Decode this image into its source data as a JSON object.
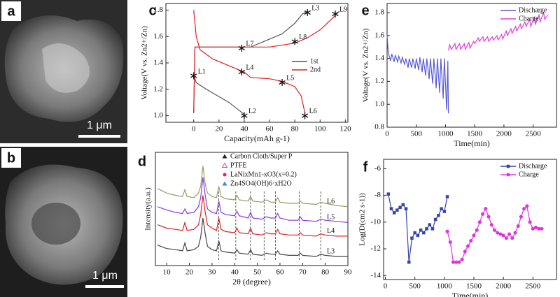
{
  "images": [
    {
      "label": "a",
      "scale_bar": "1 μm"
    },
    {
      "label": "b",
      "scale_bar": "1 μm"
    }
  ],
  "chart_data": [
    {
      "type": "line",
      "panel_label": "c",
      "x_label": "Capacity(mAh g-1)",
      "y_label": "Voltage(V vs. Zn2+/Zn)",
      "xlim": [
        -22,
        122
      ],
      "xticks": [
        0,
        20,
        40,
        60,
        80,
        100,
        120
      ],
      "ylim": [
        0.95,
        1.85
      ],
      "yticks": [
        {
          "value": 1,
          "label": "1.0"
        },
        1.2,
        1.4,
        1.6,
        1.8
      ],
      "legend_position": "center right",
      "series": [
        {
          "name": "1st",
          "color": "#555555",
          "x": [
            0,
            2,
            10,
            28,
            40,
            40,
            0,
            1,
            20,
            45,
            55,
            70,
            80,
            86,
            90
          ],
          "values": [
            1.31,
            1.25,
            1.2,
            1.1,
            1.01,
            null,
            1.02,
            1.52,
            1.52,
            1.52,
            1.56,
            1.62,
            1.7,
            1.77,
            1.79
          ]
        },
        {
          "name": "2nd",
          "color": "#e02020",
          "x": [
            0,
            2,
            5,
            15,
            30,
            40,
            45,
            60,
            70,
            80,
            85,
            88,
            88,
            0,
            1,
            40,
            60,
            80,
            90,
            100,
            110,
            115
          ],
          "values": [
            1.8,
            1.6,
            1.5,
            1.43,
            1.37,
            1.33,
            1.29,
            1.28,
            1.26,
            1.22,
            1.15,
            1.02,
            null,
            1.02,
            1.52,
            1.52,
            1.52,
            1.55,
            1.59,
            1.65,
            1.74,
            1.79
          ]
        }
      ],
      "annotations": [
        {
          "text": "L1",
          "x": 0,
          "y": 1.31
        },
        {
          "text": "L2",
          "x": 40,
          "y": 1.01
        },
        {
          "text": "L3",
          "x": 90,
          "y": 1.79
        },
        {
          "text": "L4",
          "x": 38,
          "y": 1.34
        },
        {
          "text": "L5",
          "x": 70,
          "y": 1.26
        },
        {
          "text": "L6",
          "x": 88,
          "y": 1.01
        },
        {
          "text": "L7",
          "x": 38,
          "y": 1.52
        },
        {
          "text": "L8",
          "x": 80,
          "y": 1.57
        },
        {
          "text": "L9",
          "x": 112,
          "y": 1.78
        }
      ]
    },
    {
      "type": "line",
      "panel_label": "d",
      "x_label": "2θ (degree)",
      "y_label": "Intensity(a.u.)",
      "xlim": [
        5,
        90
      ],
      "xticks": [
        10,
        20,
        30,
        40,
        50,
        60,
        70,
        80,
        90
      ],
      "ylim": [
        0,
        100
      ],
      "end_labels": true,
      "reference_x": [
        33,
        40.5,
        47,
        53,
        58,
        68.5,
        78
      ],
      "legend_entries": [
        {
          "label": "Carbon Cloth/Super P",
          "marker": "triangle",
          "color": "#222222"
        },
        {
          "label": "PTFE",
          "marker": "triangle-open",
          "color": "#e040c0"
        },
        {
          "label": "LaNixMn1-xO3(x=0.2)",
          "marker": "circle",
          "color": "#e0207a"
        },
        {
          "label": "Zn4SO4(OH)6·xH2O",
          "marker": "triangle",
          "color": "#3a8fc0"
        }
      ],
      "x": [
        6,
        10,
        14,
        17,
        18,
        19,
        22,
        24,
        25,
        26,
        27,
        28,
        30,
        32,
        33,
        34,
        36,
        40,
        41,
        42,
        46,
        47,
        48,
        52,
        54,
        56,
        58,
        59,
        60,
        64,
        68,
        69,
        70,
        76,
        78,
        80,
        85,
        90
      ],
      "series": [
        {
          "name": "L3",
          "color": "#444444",
          "values": [
            18,
            15,
            14,
            13,
            20,
            13,
            14,
            17,
            25,
            42,
            28,
            17,
            14,
            13,
            22,
            13,
            12,
            11,
            14,
            11,
            10,
            14,
            10,
            9,
            11,
            10,
            10,
            13,
            10,
            9,
            9,
            11,
            9,
            8,
            10,
            9,
            8,
            8
          ]
        },
        {
          "name": "L4",
          "color": "#e02020",
          "values": [
            36,
            33,
            32,
            31,
            38,
            31,
            32,
            36,
            45,
            62,
            47,
            36,
            33,
            31,
            42,
            32,
            30,
            29,
            33,
            29,
            28,
            33,
            28,
            27,
            29,
            28,
            28,
            32,
            28,
            27,
            27,
            29,
            27,
            26,
            28,
            27,
            26,
            26
          ]
        },
        {
          "name": "L5",
          "color": "#8a3ae0",
          "values": [
            52,
            49,
            47,
            46,
            50,
            46,
            47,
            52,
            60,
            78,
            62,
            50,
            47,
            46,
            57,
            47,
            45,
            44,
            48,
            44,
            42,
            47,
            42,
            41,
            43,
            42,
            42,
            46,
            42,
            40,
            40,
            43,
            40,
            39,
            41,
            40,
            39,
            38
          ]
        },
        {
          "name": "L6",
          "color": "#9a9a60",
          "values": [
            68,
            64,
            62,
            61,
            67,
            61,
            60,
            64,
            70,
            88,
            72,
            64,
            61,
            60,
            70,
            61,
            59,
            58,
            62,
            58,
            57,
            61,
            57,
            56,
            58,
            56,
            56,
            60,
            56,
            55,
            55,
            57,
            55,
            54,
            56,
            55,
            53,
            52
          ]
        }
      ]
    },
    {
      "type": "line",
      "panel_label": "e",
      "x_label": "Time(min)",
      "y_label": "Voltage(V vs. Zn2+/Zn)",
      "xlim": [
        0,
        2900
      ],
      "xticks": [
        0,
        500,
        1000,
        1500,
        2000,
        2500
      ],
      "ylim": [
        0.8,
        1.88
      ],
      "yticks": [
        0.8,
        {
          "value": 1,
          "label": "1.0"
        },
        1.2,
        1.4,
        1.6,
        1.8
      ],
      "legend_position": "upper right",
      "series": [
        {
          "name": "Discharge",
          "color": "#5a5ad8",
          "x": [
            0,
            20,
            60,
            80,
            120,
            140,
            180,
            200,
            240,
            260,
            300,
            320,
            360,
            380,
            420,
            440,
            480,
            500,
            540,
            560,
            600,
            620,
            660,
            680,
            720,
            740,
            780,
            800,
            840,
            860,
            900,
            920,
            960,
            980,
            1020,
            1040,
            1050
          ],
          "values": [
            1.6,
            1.45,
            1.38,
            1.44,
            1.37,
            1.43,
            1.37,
            1.42,
            1.36,
            1.41,
            1.35,
            1.4,
            1.32,
            1.4,
            1.32,
            1.4,
            1.31,
            1.4,
            1.3,
            1.41,
            1.28,
            1.4,
            1.25,
            1.4,
            1.22,
            1.4,
            1.18,
            1.4,
            1.14,
            1.4,
            1.1,
            1.4,
            1.05,
            1.4,
            0.95,
            1.38,
            0.92
          ]
        },
        {
          "name": "Charge",
          "color": "#e040e0",
          "x": [
            1050,
            1070,
            1100,
            1160,
            1180,
            1240,
            1260,
            1320,
            1340,
            1400,
            1420,
            1480,
            1500,
            1560,
            1580,
            1640,
            1660,
            1720,
            1740,
            1800,
            1820,
            1880,
            1900,
            1960,
            1980,
            2040,
            2060,
            2120,
            2140,
            2200,
            2220,
            2280,
            2300,
            2360,
            2380,
            2440,
            2460,
            2520,
            2540,
            2600,
            2620,
            2680,
            2700,
            2750
          ],
          "values": [
            1.47,
            1.52,
            1.48,
            1.53,
            1.48,
            1.53,
            1.48,
            1.53,
            1.48,
            1.54,
            1.49,
            1.55,
            1.53,
            1.58,
            1.55,
            1.59,
            1.55,
            1.59,
            1.55,
            1.59,
            1.56,
            1.6,
            1.56,
            1.61,
            1.57,
            1.64,
            1.6,
            1.66,
            1.62,
            1.68,
            1.64,
            1.7,
            1.66,
            1.72,
            1.68,
            1.74,
            1.68,
            1.76,
            1.7,
            1.78,
            1.72,
            1.8,
            1.74,
            1.78
          ]
        }
      ]
    },
    {
      "type": "line",
      "panel_label": "f",
      "x_label": "Time(min)",
      "y_label": "Log(D(cm2 s-1))",
      "xlim": [
        -30,
        2900
      ],
      "xticks": [
        0,
        500,
        1000,
        1500,
        2000,
        2500
      ],
      "ylim": [
        -14.3,
        -5.3
      ],
      "yticks": [
        -14,
        -12,
        -10,
        -8,
        -6
      ],
      "legend_position": "upper right",
      "series": [
        {
          "name": "Discharge",
          "color": "#3344aa",
          "marker": "square",
          "x": [
            50,
            100,
            150,
            200,
            250,
            300,
            350,
            400,
            450,
            500,
            550,
            600,
            650,
            700,
            750,
            800,
            850,
            900,
            950,
            1000,
            1050
          ],
          "values": [
            -7.9,
            -9.0,
            -9.3,
            -9.1,
            -8.9,
            -8.7,
            -9.0,
            -13.0,
            -11.2,
            -10.8,
            -11.0,
            -10.6,
            -10.8,
            -10.5,
            -10.2,
            -10.5,
            -9.8,
            -9.5,
            -9.0,
            -9.2,
            -8.1
          ]
        },
        {
          "name": "Charge",
          "color": "#e033e0",
          "marker": "circle",
          "x": [
            1050,
            1100,
            1150,
            1200,
            1250,
            1300,
            1350,
            1400,
            1450,
            1500,
            1550,
            1600,
            1650,
            1700,
            1750,
            1800,
            1850,
            1900,
            1950,
            2000,
            2050,
            2100,
            2150,
            2200,
            2250,
            2300,
            2350,
            2400,
            2450,
            2500,
            2550,
            2600,
            2650
          ],
          "values": [
            -10.7,
            -11.5,
            -13.0,
            -13.0,
            -13.0,
            -12.8,
            -12.2,
            -11.8,
            -11.4,
            -11.0,
            -10.6,
            -10.0,
            -9.4,
            -9.0,
            -9.6,
            -10.2,
            -10.6,
            -10.8,
            -10.9,
            -11.0,
            -11.2,
            -10.9,
            -11.2,
            -10.8,
            -10.3,
            -9.6,
            -9.0,
            -8.8,
            -10.0,
            -10.5,
            -10.4,
            -10.5,
            -10.5
          ]
        }
      ]
    }
  ]
}
